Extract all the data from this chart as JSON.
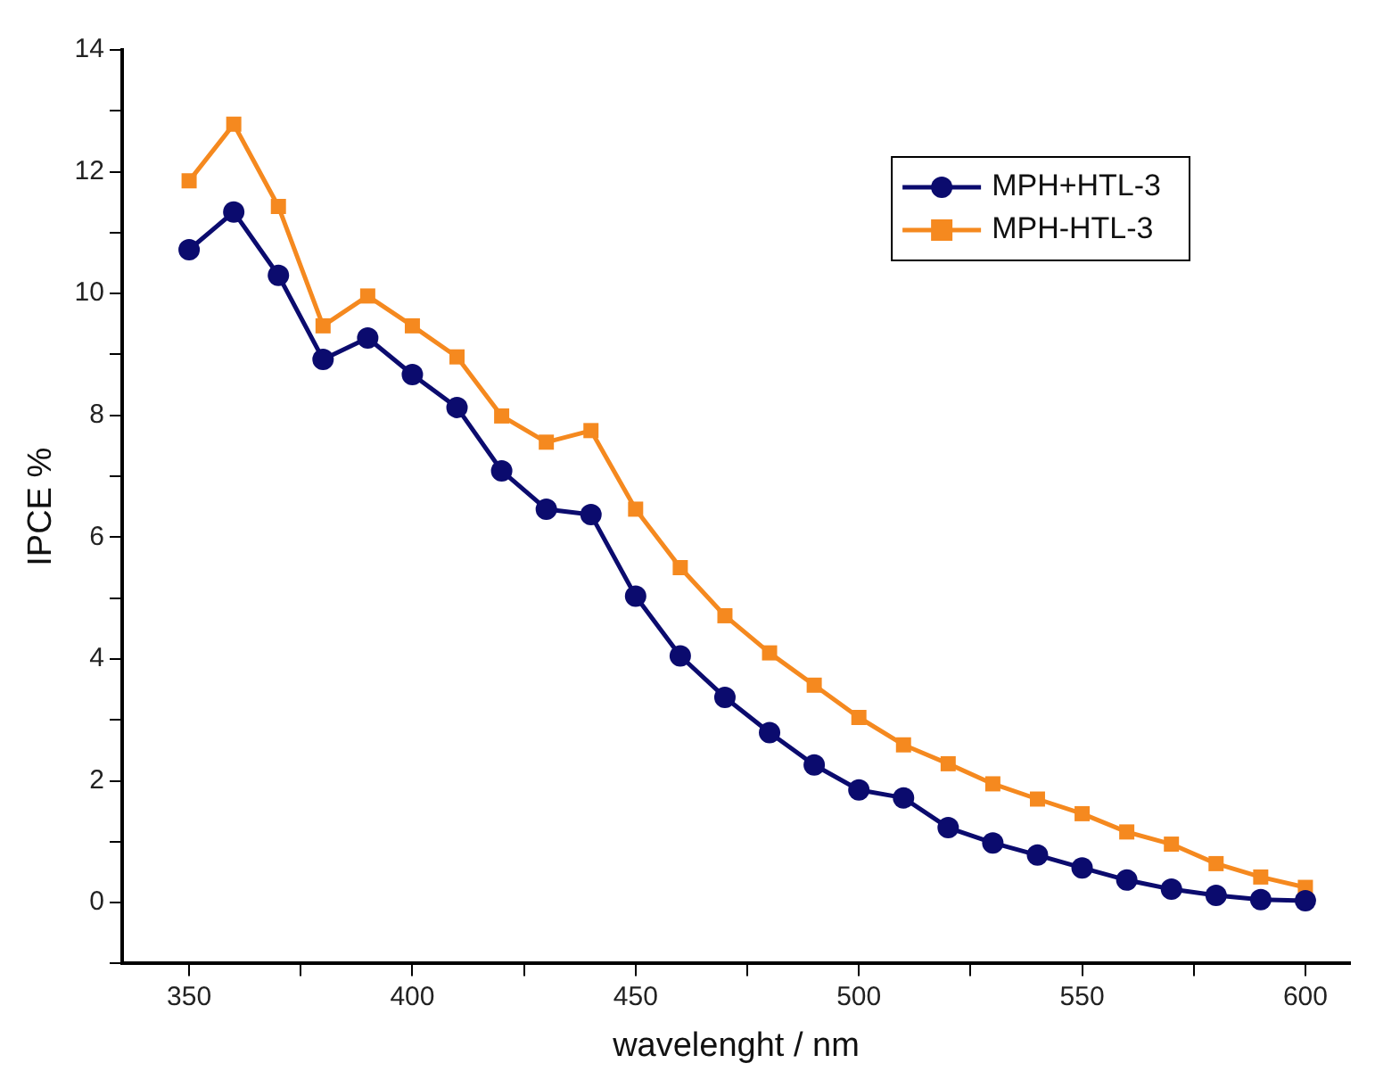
{
  "chart_data": {
    "type": "line",
    "xlabel": "wavelenght / nm",
    "ylabel": "IPCE %",
    "x": [
      350,
      360,
      370,
      380,
      390,
      400,
      410,
      420,
      430,
      440,
      450,
      460,
      470,
      480,
      490,
      500,
      510,
      520,
      530,
      540,
      550,
      560,
      570,
      580,
      590,
      600
    ],
    "series": [
      {
        "name": "MPH+HTL-3",
        "color": "#0b0b6e",
        "marker": "circle",
        "values": [
          10.72,
          11.34,
          10.3,
          8.92,
          9.27,
          8.67,
          8.13,
          7.09,
          6.46,
          6.37,
          5.03,
          4.05,
          3.37,
          2.79,
          2.26,
          1.85,
          1.72,
          1.23,
          0.98,
          0.78,
          0.57,
          0.37,
          0.22,
          0.12,
          0.05,
          0.03
        ]
      },
      {
        "name": "MPH-HTL-3",
        "color": "#f5891f",
        "marker": "square",
        "values": [
          11.85,
          12.78,
          11.43,
          9.47,
          9.96,
          9.47,
          8.96,
          7.99,
          7.56,
          7.75,
          6.46,
          5.5,
          4.71,
          4.1,
          3.57,
          3.04,
          2.59,
          2.28,
          1.95,
          1.7,
          1.46,
          1.16,
          0.96,
          0.64,
          0.42,
          0.25
        ]
      }
    ],
    "xlim": [
      335,
      610
    ],
    "xticks": [
      350,
      {
        "value": 375,
        "label": null
      },
      400,
      {
        "value": 425,
        "label": null
      },
      450,
      {
        "value": 475,
        "label": null
      },
      500,
      {
        "value": 525,
        "label": null
      },
      550,
      {
        "value": 575,
        "label": null
      },
      600
    ],
    "ylim": [
      -1,
      14
    ],
    "yticks": [
      {
        "value": -1,
        "label": null
      },
      0,
      {
        "value": 1,
        "label": null
      },
      2,
      {
        "value": 3,
        "label": null
      },
      4,
      {
        "value": 5,
        "label": null
      },
      6,
      {
        "value": 7,
        "label": null
      },
      8,
      {
        "value": 9,
        "label": null
      },
      10,
      {
        "value": 11,
        "label": null
      },
      12,
      {
        "value": 13,
        "label": null
      },
      14
    ],
    "grid": false,
    "legend": "top right",
    "line_style": "solid"
  }
}
